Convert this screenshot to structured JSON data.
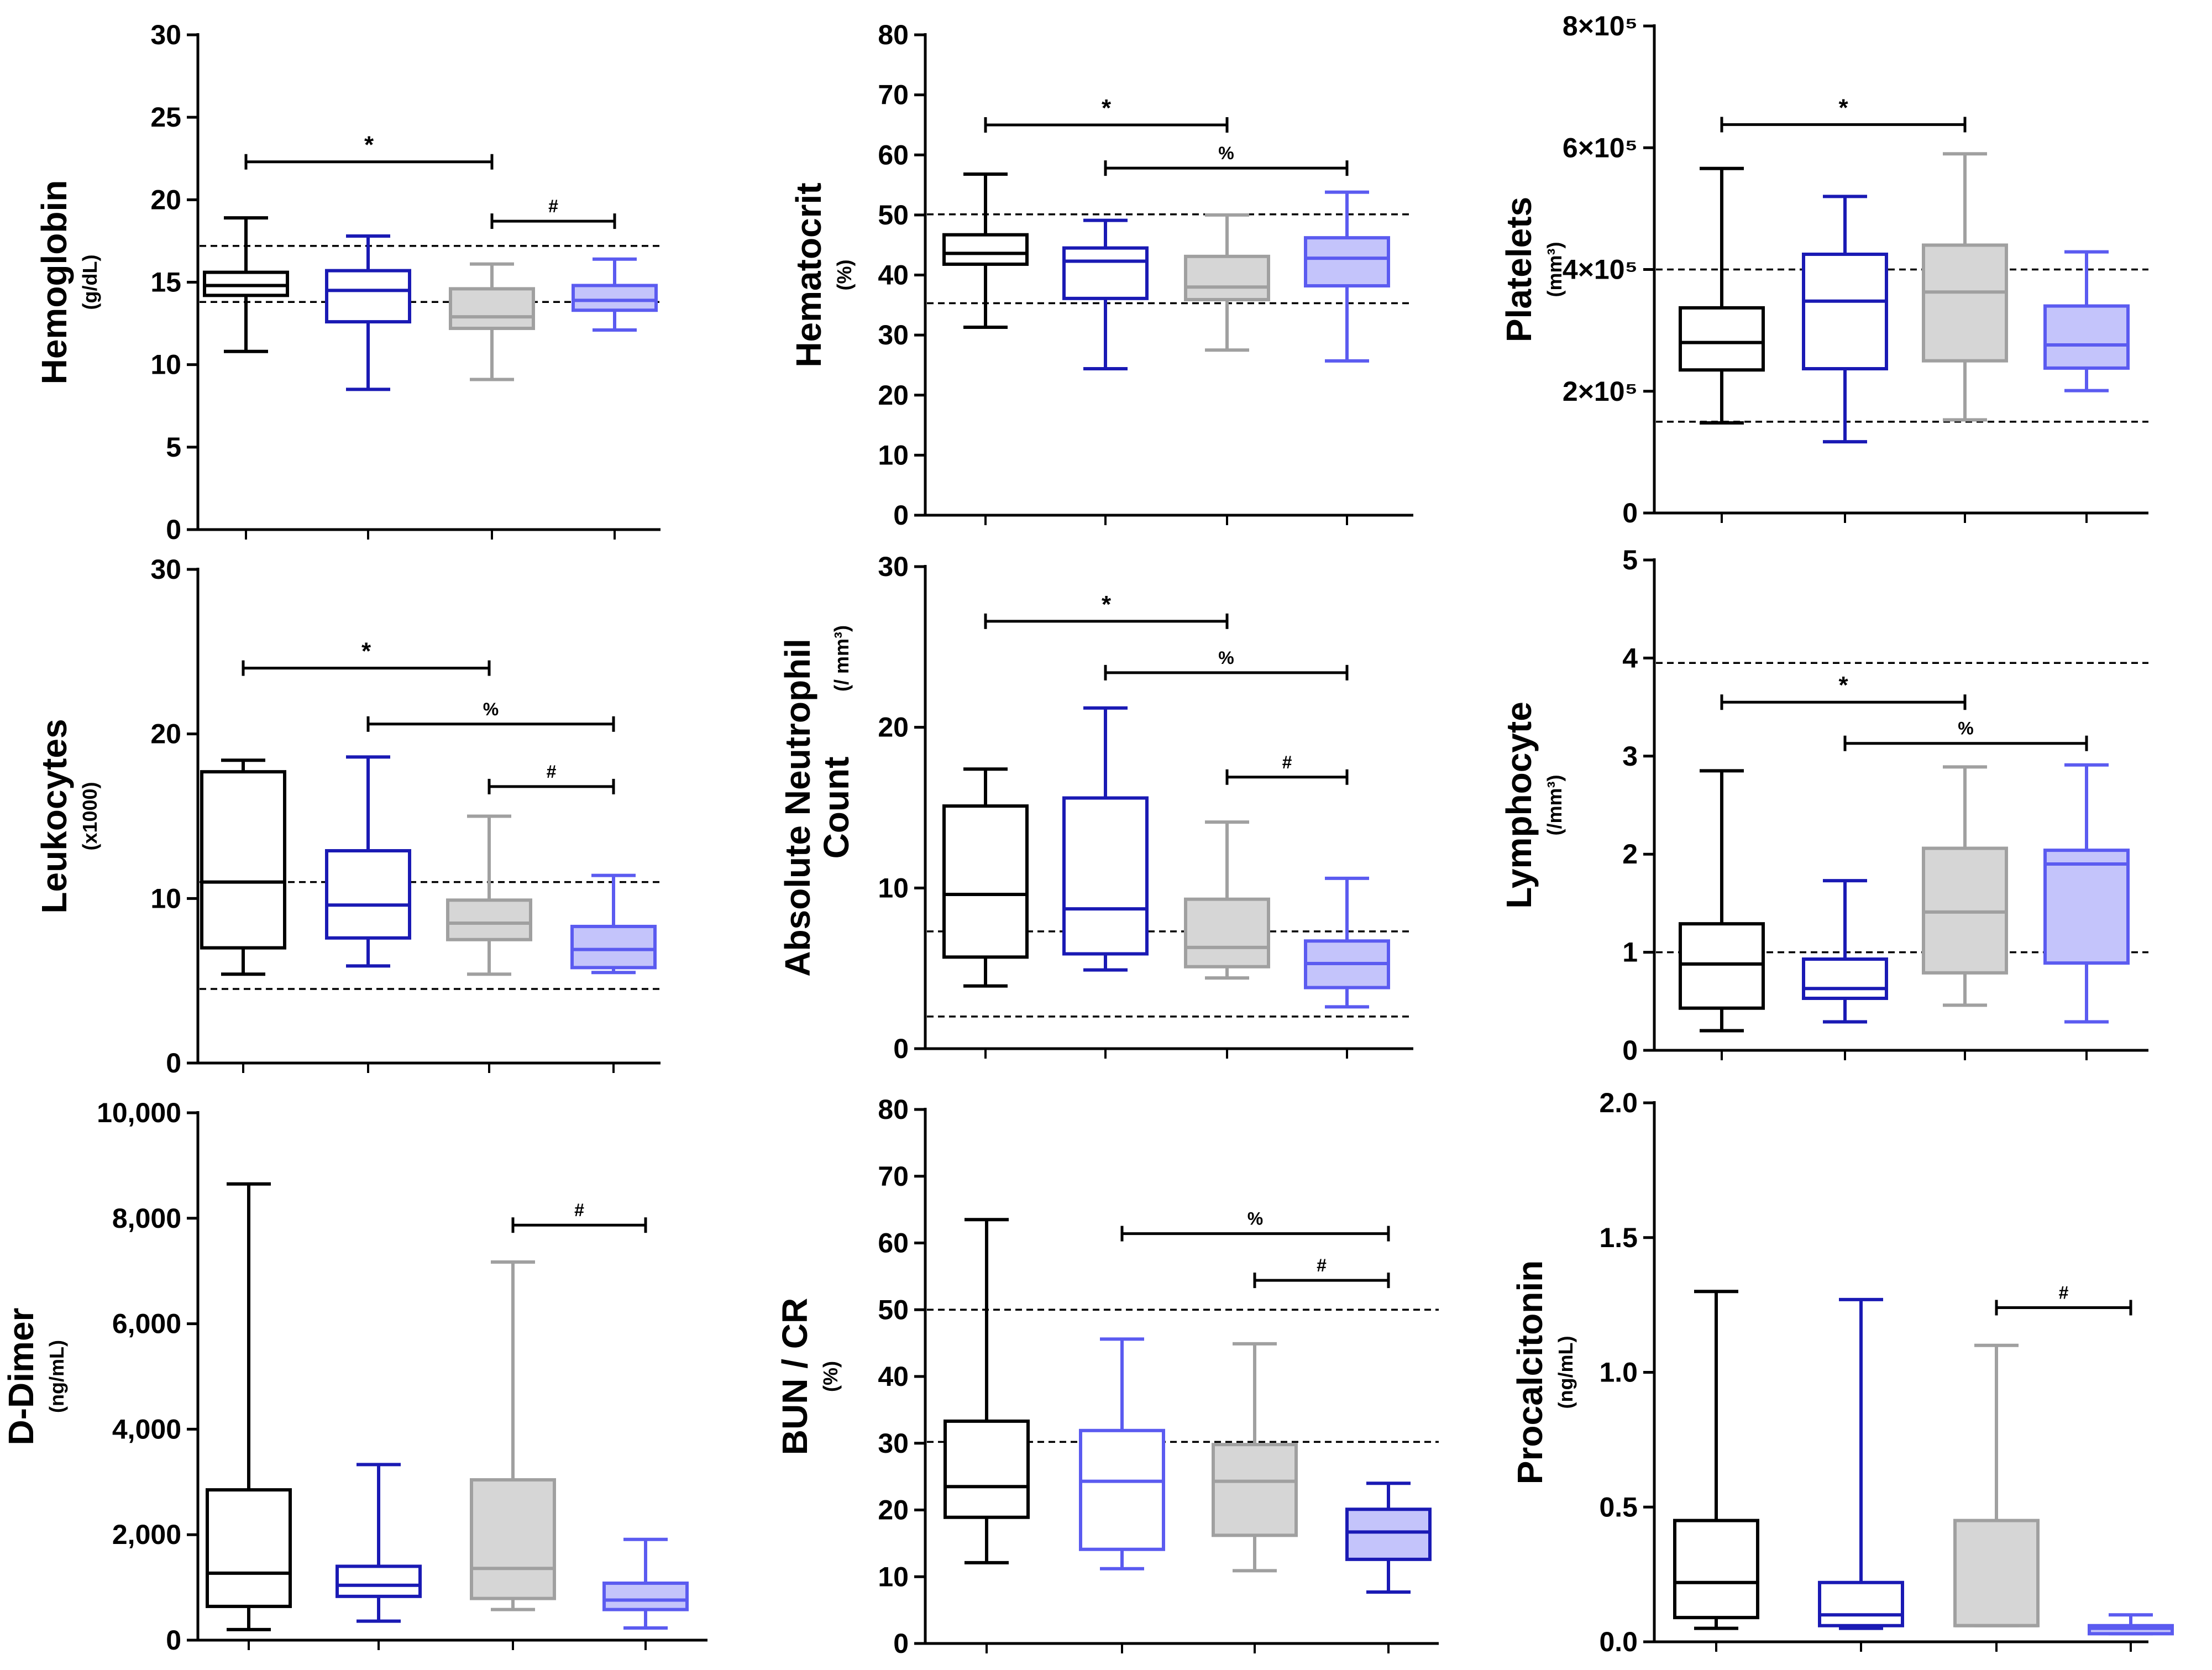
{
  "colors": {
    "group1": "#000000",
    "group2": "#1a1ab4",
    "group3": "#a0a0a0",
    "group4": "#5b5bf0",
    "group3_fill": "#d6d6d6",
    "group4_fill": "#c4c4fb"
  },
  "chart_data": [
    {
      "type": "box",
      "title": "",
      "ylabel": "Hemoglobin",
      "yunit": "(g/dL)",
      "ylim": [
        0,
        30
      ],
      "ticks": [
        {
          "v": 0,
          "label": "0"
        },
        {
          "v": 5,
          "label": "5"
        },
        {
          "v": 10,
          "label": "10"
        },
        {
          "v": 15,
          "label": "15"
        },
        {
          "v": 20,
          "label": "20"
        },
        {
          "v": 25,
          "label": "25"
        },
        {
          "v": 30,
          "label": "30"
        }
      ],
      "reference_lines": [
        13.8,
        17.2
      ],
      "boxes": [
        {
          "group": 1,
          "min": 10.8,
          "q1": 14.2,
          "median": 14.8,
          "q3": 15.6,
          "max": 18.9,
          "filled": false
        },
        {
          "group": 2,
          "min": 8.5,
          "q1": 12.6,
          "median": 14.5,
          "q3": 15.7,
          "max": 17.8,
          "filled": false
        },
        {
          "group": 3,
          "min": 9.1,
          "q1": 12.2,
          "median": 12.9,
          "q3": 14.6,
          "max": 16.1,
          "filled": true
        },
        {
          "group": 4,
          "min": 12.1,
          "q1": 13.3,
          "median": 13.9,
          "q3": 14.8,
          "max": 16.4,
          "filled": true
        }
      ],
      "significance": [
        {
          "from": 1,
          "to": 3,
          "y": 22.3,
          "symbol": "*"
        },
        {
          "from": 3,
          "to": 4,
          "y": 18.7,
          "symbol": "#"
        }
      ]
    },
    {
      "type": "box",
      "ylabel": "Hematocrit",
      "yunit": "(%)",
      "ylim": [
        0,
        80
      ],
      "ticks": [
        {
          "v": 0,
          "label": "0"
        },
        {
          "v": 10,
          "label": "10"
        },
        {
          "v": 20,
          "label": "20"
        },
        {
          "v": 30,
          "label": "30"
        },
        {
          "v": 40,
          "label": "40"
        },
        {
          "v": 50,
          "label": "50"
        },
        {
          "v": 60,
          "label": "60"
        },
        {
          "v": 70,
          "label": "70"
        },
        {
          "v": 80,
          "label": "80"
        }
      ],
      "reference_lines": [
        35.3,
        50.1
      ],
      "boxes": [
        {
          "group": 1,
          "min": 31.3,
          "q1": 41.8,
          "median": 43.6,
          "q3": 46.7,
          "max": 56.8,
          "filled": false
        },
        {
          "group": 2,
          "min": 24.4,
          "q1": 36.1,
          "median": 42.3,
          "q3": 44.5,
          "max": 49.1,
          "filled": false
        },
        {
          "group": 3,
          "min": 27.5,
          "q1": 35.9,
          "median": 38.0,
          "q3": 43.1,
          "max": 50.0,
          "filled": true
        },
        {
          "group": 4,
          "min": 25.7,
          "q1": 38.2,
          "median": 42.8,
          "q3": 46.2,
          "max": 53.8,
          "filled": true
        }
      ],
      "significance": [
        {
          "from": 1,
          "to": 3,
          "y": 65.0,
          "symbol": "*"
        },
        {
          "from": 2,
          "to": 4,
          "y": 57.8,
          "symbol": "%"
        }
      ]
    },
    {
      "type": "box",
      "ylabel": "Platelets",
      "yunit": "(mm³)",
      "ylim": [
        0,
        800000
      ],
      "ticks": [
        {
          "v": 0,
          "label": "0"
        },
        {
          "v": 200000,
          "label": "2×10⁵"
        },
        {
          "v": 400000,
          "label": "4×10⁵"
        },
        {
          "v": 600000,
          "label": "6×10⁵"
        },
        {
          "v": 800000,
          "label": "8×10⁵"
        }
      ],
      "reference_lines": [
        150000,
        400000
      ],
      "boxes": [
        {
          "group": 1,
          "min": 148000,
          "q1": 235000,
          "median": 280000,
          "q3": 337000,
          "max": 566000,
          "filled": false
        },
        {
          "group": 2,
          "min": 117000,
          "q1": 237000,
          "median": 348000,
          "q3": 425000,
          "max": 520000,
          "filled": false
        },
        {
          "group": 3,
          "min": 153000,
          "q1": 250000,
          "median": 363000,
          "q3": 440000,
          "max": 590000,
          "filled": true
        },
        {
          "group": 4,
          "min": 201000,
          "q1": 238000,
          "median": 276000,
          "q3": 340000,
          "max": 429000,
          "filled": true
        }
      ],
      "significance": [
        {
          "from": 1,
          "to": 3,
          "y": 638000,
          "symbol": "*"
        }
      ]
    },
    {
      "type": "box",
      "ylabel": "Leukocytes",
      "yunit": "(x1000)",
      "ylim": [
        0,
        30
      ],
      "ticks": [
        {
          "v": 0,
          "label": "0"
        },
        {
          "v": 10,
          "label": "10"
        },
        {
          "v": 20,
          "label": "20"
        },
        {
          "v": 30,
          "label": "30"
        }
      ],
      "reference_lines": [
        4.5,
        11.0
      ],
      "boxes": [
        {
          "group": 1,
          "min": 5.4,
          "q1": 7.0,
          "median": 11.0,
          "q3": 17.7,
          "max": 18.4,
          "filled": false
        },
        {
          "group": 2,
          "min": 5.9,
          "q1": 7.6,
          "median": 9.6,
          "q3": 12.9,
          "max": 18.6,
          "filled": false
        },
        {
          "group": 3,
          "min": 5.4,
          "q1": 7.5,
          "median": 8.5,
          "q3": 9.9,
          "max": 15.0,
          "filled": true
        },
        {
          "group": 4,
          "min": 5.5,
          "q1": 5.8,
          "median": 6.9,
          "q3": 8.3,
          "max": 11.4,
          "filled": true
        }
      ],
      "significance": [
        {
          "from": 1,
          "to": 3,
          "y": 24.0,
          "symbol": "*"
        },
        {
          "from": 2,
          "to": 4,
          "y": 20.6,
          "symbol": "%"
        },
        {
          "from": 3,
          "to": 4,
          "y": 16.8,
          "symbol": "#"
        }
      ]
    },
    {
      "type": "box",
      "ylabel": "Absolute Neutrophil",
      "ylabel2": "Count",
      "yunit": "(/ mm³)",
      "ylim": [
        0,
        30
      ],
      "ticks": [
        {
          "v": 0,
          "label": "0"
        },
        {
          "v": 10,
          "label": "10"
        },
        {
          "v": 20,
          "label": "20"
        },
        {
          "v": 30,
          "label": "30"
        }
      ],
      "reference_lines": [
        2.0,
        7.3
      ],
      "boxes": [
        {
          "group": 1,
          "min": 3.9,
          "q1": 5.7,
          "median": 9.6,
          "q3": 15.1,
          "max": 17.4,
          "filled": false
        },
        {
          "group": 2,
          "min": 4.9,
          "q1": 5.9,
          "median": 8.7,
          "q3": 15.6,
          "max": 21.2,
          "filled": false
        },
        {
          "group": 3,
          "min": 4.4,
          "q1": 5.1,
          "median": 6.3,
          "q3": 9.3,
          "max": 14.1,
          "filled": true
        },
        {
          "group": 4,
          "min": 2.6,
          "q1": 3.8,
          "median": 5.3,
          "q3": 6.7,
          "max": 10.6,
          "filled": true
        }
      ],
      "significance": [
        {
          "from": 1,
          "to": 3,
          "y": 26.6,
          "symbol": "*"
        },
        {
          "from": 2,
          "to": 4,
          "y": 23.4,
          "symbol": "%"
        },
        {
          "from": 3,
          "to": 4,
          "y": 16.9,
          "symbol": "#"
        }
      ]
    },
    {
      "type": "box",
      "ylabel": "Lymphocyte",
      "yunit": "(/mm³)",
      "ylim": [
        0,
        5
      ],
      "ticks": [
        {
          "v": 0,
          "label": "0"
        },
        {
          "v": 1,
          "label": "1"
        },
        {
          "v": 2,
          "label": "2"
        },
        {
          "v": 3,
          "label": "3"
        },
        {
          "v": 4,
          "label": "4"
        },
        {
          "v": 5,
          "label": "5"
        }
      ],
      "reference_lines": [
        1.0,
        3.95
      ],
      "boxes": [
        {
          "group": 1,
          "min": 0.2,
          "q1": 0.43,
          "median": 0.88,
          "q3": 1.29,
          "max": 2.85,
          "filled": false
        },
        {
          "group": 2,
          "min": 0.29,
          "q1": 0.53,
          "median": 0.63,
          "q3": 0.93,
          "max": 1.73,
          "filled": false
        },
        {
          "group": 3,
          "min": 0.46,
          "q1": 0.79,
          "median": 1.41,
          "q3": 2.06,
          "max": 2.89,
          "filled": true
        },
        {
          "group": 4,
          "min": 0.29,
          "q1": 0.89,
          "median": 1.9,
          "q3": 2.04,
          "max": 2.91,
          "filled": true
        }
      ],
      "significance": [
        {
          "from": 1,
          "to": 3,
          "y": 3.55,
          "symbol": "*"
        },
        {
          "from": 2,
          "to": 4,
          "y": 3.13,
          "symbol": "%"
        }
      ]
    },
    {
      "type": "box",
      "ylabel": "D-Dimer",
      "yunit": "(ng/mL)",
      "ylim": [
        0,
        10000
      ],
      "ticks": [
        {
          "v": 0,
          "label": "0"
        },
        {
          "v": 2000,
          "label": "2,000"
        },
        {
          "v": 4000,
          "label": "4,000"
        },
        {
          "v": 6000,
          "label": "6,000"
        },
        {
          "v": 8000,
          "label": "8,000"
        },
        {
          "v": 10000,
          "label": "10,000"
        }
      ],
      "reference_lines": [],
      "boxes": [
        {
          "group": 1,
          "min": 200,
          "q1": 640,
          "median": 1270,
          "q3": 2850,
          "max": 8650,
          "filled": false
        },
        {
          "group": 2,
          "min": 360,
          "q1": 830,
          "median": 1040,
          "q3": 1400,
          "max": 3330,
          "filled": false
        },
        {
          "group": 3,
          "min": 580,
          "q1": 790,
          "median": 1360,
          "q3": 3040,
          "max": 7170,
          "filled": true
        },
        {
          "group": 4,
          "min": 230,
          "q1": 580,
          "median": 760,
          "q3": 1080,
          "max": 1910,
          "filled": true
        }
      ],
      "significance": [
        {
          "from": 3,
          "to": 4,
          "y": 7870,
          "symbol": "#"
        }
      ]
    },
    {
      "type": "box",
      "ylabel": "BUN / CR",
      "yunit": "(%)",
      "ylim": [
        0,
        80
      ],
      "ticks": [
        {
          "v": 0,
          "label": "0"
        },
        {
          "v": 10,
          "label": "10"
        },
        {
          "v": 20,
          "label": "20"
        },
        {
          "v": 30,
          "label": "30"
        },
        {
          "v": 40,
          "label": "40"
        },
        {
          "v": 50,
          "label": "50"
        },
        {
          "v": 60,
          "label": "60"
        },
        {
          "v": 70,
          "label": "70"
        },
        {
          "v": 80,
          "label": "80"
        }
      ],
      "reference_lines": [
        30.2,
        50.0
      ],
      "boxes": [
        {
          "group": 1,
          "min": 12.1,
          "q1": 18.9,
          "median": 23.5,
          "q3": 33.3,
          "max": 63.5,
          "filled": false
        },
        {
          "group": 4,
          "min": 11.2,
          "q1": 14.1,
          "median": 24.3,
          "q3": 31.9,
          "max": 45.6,
          "filled": false
        },
        {
          "group": 3,
          "min": 10.9,
          "q1": 16.2,
          "median": 24.3,
          "q3": 29.8,
          "max": 44.9,
          "filled": true
        },
        {
          "group": 2,
          "min": 7.7,
          "q1": 12.6,
          "median": 16.7,
          "q3": 20.1,
          "max": 24.0,
          "filled": true,
          "fill": "#c4c4fb"
        }
      ],
      "significance": [
        {
          "from": 2,
          "to": 4,
          "y": 61.4,
          "symbol": "%"
        },
        {
          "from": 3,
          "to": 4,
          "y": 54.4,
          "symbol": "#"
        }
      ]
    },
    {
      "type": "box",
      "ylabel": "Procalcitonin",
      "yunit": "(ng/mL)",
      "ylim": [
        0,
        2.0
      ],
      "ticks": [
        {
          "v": 0,
          "label": "0.0"
        },
        {
          "v": 0.5,
          "label": "0.5"
        },
        {
          "v": 1.0,
          "label": "1.0"
        },
        {
          "v": 1.5,
          "label": "1.5"
        },
        {
          "v": 2.0,
          "label": "2.0"
        }
      ],
      "reference_lines": [],
      "boxes": [
        {
          "group": 1,
          "min": 0.05,
          "q1": 0.09,
          "median": 0.22,
          "q3": 0.45,
          "max": 1.3,
          "filled": false
        },
        {
          "group": 2,
          "min": 0.05,
          "q1": 0.06,
          "median": 0.1,
          "q3": 0.22,
          "max": 1.27,
          "filled": false
        },
        {
          "group": 3,
          "min": 0.06,
          "q1": 0.06,
          "median": 0.06,
          "q3": 0.45,
          "max": 1.1,
          "filled": true
        },
        {
          "group": 4,
          "min": 0.03,
          "q1": 0.03,
          "median": 0.05,
          "q3": 0.06,
          "max": 0.1,
          "filled": true
        }
      ],
      "significance": [
        {
          "from": 3,
          "to": 4,
          "y": 1.24,
          "symbol": "#"
        }
      ]
    }
  ]
}
